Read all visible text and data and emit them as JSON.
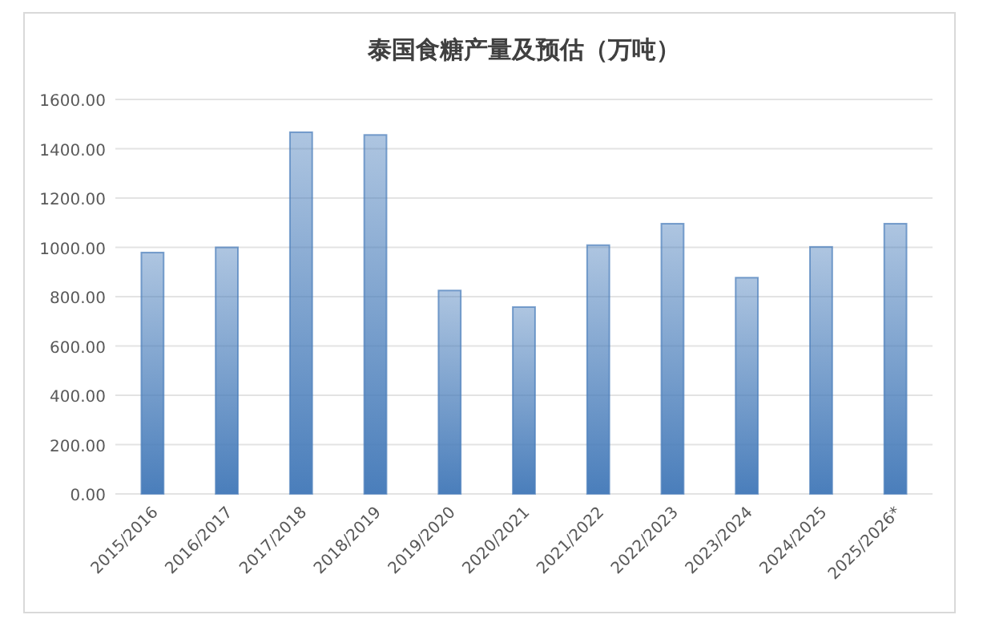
{
  "chart_data": {
    "type": "bar",
    "title": "泰国食糖产量及预估（万吨）",
    "categories": [
      "2015/2016",
      "2016/2017",
      "2017/2018",
      "2018/2019",
      "2019/2020",
      "2020/2021",
      "2021/2022",
      "2022/2023",
      "2023/2024",
      "2024/2025",
      "2025/2026*"
    ],
    "values": [
      979,
      1000,
      1467,
      1456,
      825,
      758,
      1009,
      1096,
      877,
      1002,
      1096
    ],
    "color": "#4a7ebb",
    "ylim": [
      0,
      1600
    ],
    "yticks": [
      {
        "value": 0,
        "label": "0.00"
      },
      {
        "value": 200,
        "label": "200.00"
      },
      {
        "value": 400,
        "label": "400.00"
      },
      {
        "value": 600,
        "label": "600.00"
      },
      {
        "value": 800,
        "label": "800.00"
      },
      {
        "value": 1000,
        "label": "1000.00"
      },
      {
        "value": 1200,
        "label": "1200.00"
      },
      {
        "value": 1400,
        "label": "1400.00"
      },
      {
        "value": 1600,
        "label": "1600.00"
      }
    ],
    "grid": "y"
  }
}
